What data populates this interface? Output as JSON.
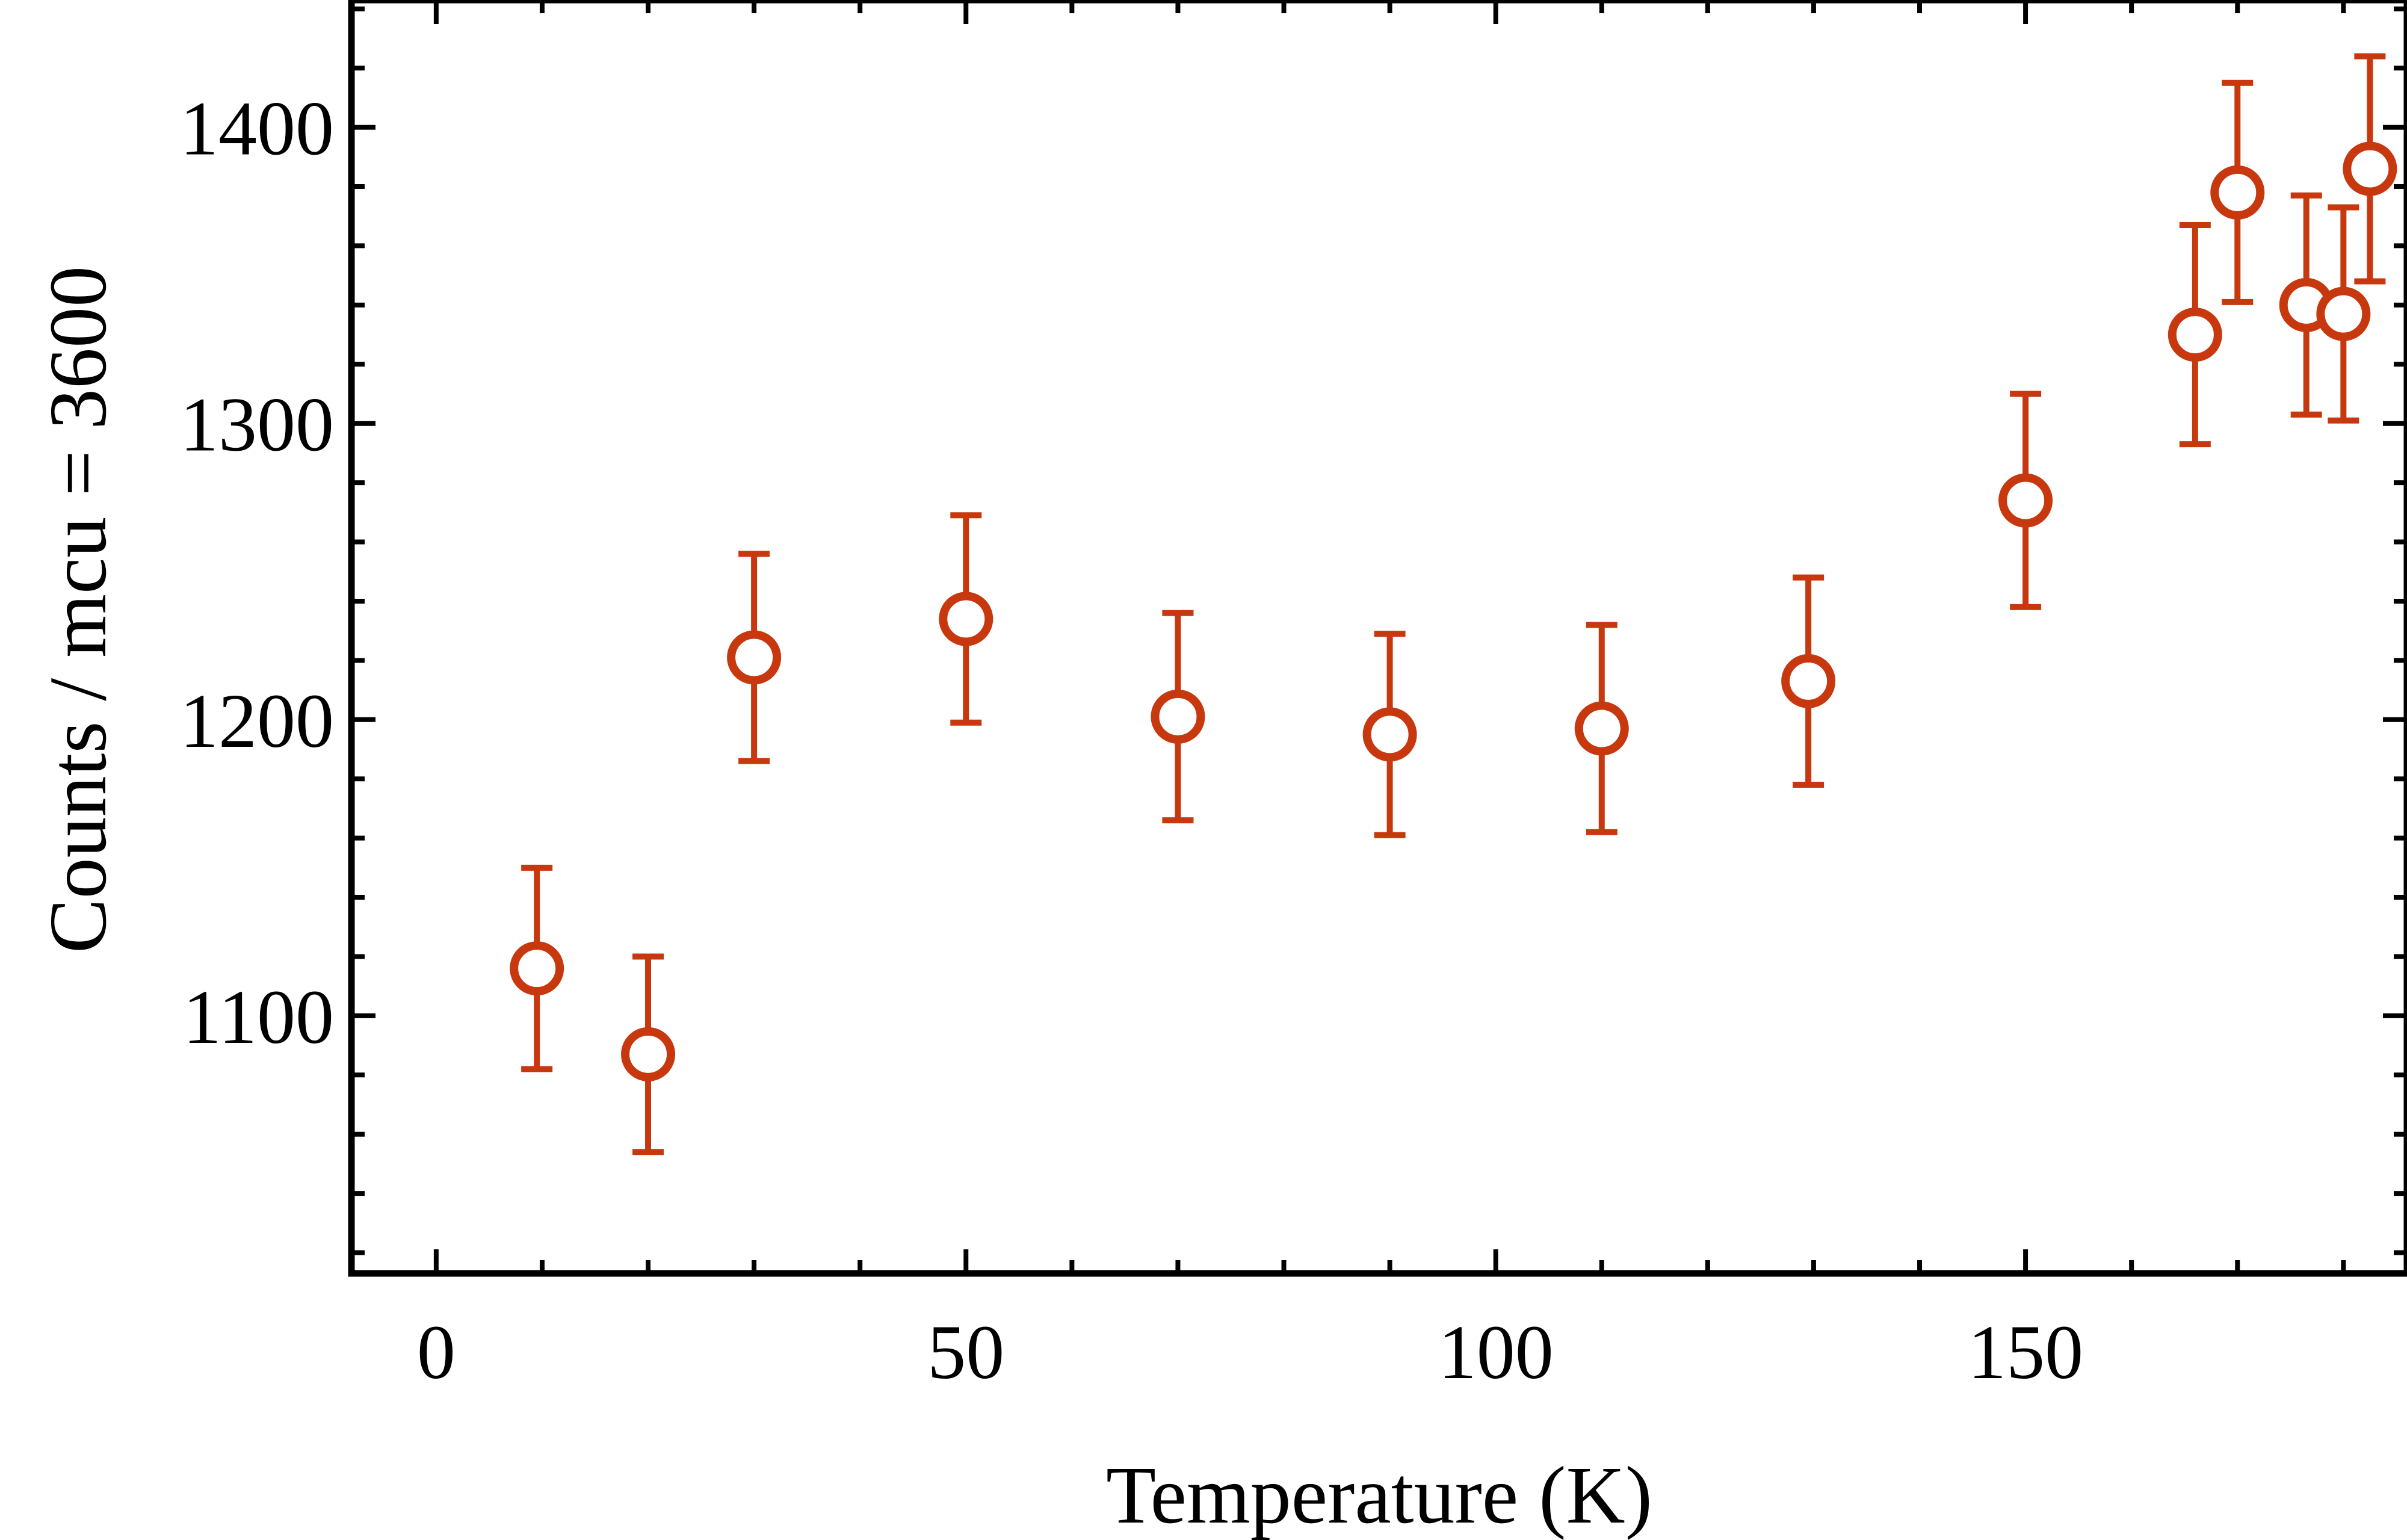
{
  "chart_data": {
    "type": "scatter",
    "title": "",
    "xlabel": "Temperature (K)",
    "ylabel": "Counts / mcu = 3600",
    "xlim": [
      -8,
      186
    ],
    "ylim": [
      1013,
      1443
    ],
    "x_ticks": [
      0,
      50,
      100,
      150
    ],
    "x_minor_step": 10,
    "y_ticks": [
      1100,
      1200,
      1300,
      1400
    ],
    "y_minor_step": 20,
    "grid": false,
    "legend": "none",
    "marker": "open-circle",
    "error_bars": true,
    "color": "#c8380e",
    "series": [
      {
        "points": [
          {
            "x": 9.5,
            "y": 1116,
            "err": 34
          },
          {
            "x": 20,
            "y": 1087,
            "err": 33
          },
          {
            "x": 30,
            "y": 1221,
            "err": 35
          },
          {
            "x": 50,
            "y": 1234,
            "err": 35
          },
          {
            "x": 70,
            "y": 1201,
            "err": 35
          },
          {
            "x": 90,
            "y": 1195,
            "err": 34
          },
          {
            "x": 110,
            "y": 1197,
            "err": 35
          },
          {
            "x": 129.5,
            "y": 1213,
            "err": 35
          },
          {
            "x": 150,
            "y": 1274,
            "err": 36
          },
          {
            "x": 166,
            "y": 1330,
            "err": 37
          },
          {
            "x": 170,
            "y": 1378,
            "err": 37
          },
          {
            "x": 176.5,
            "y": 1340,
            "err": 37
          },
          {
            "x": 180,
            "y": 1337,
            "err": 36
          },
          {
            "x": 182.5,
            "y": 1386,
            "err": 38
          }
        ]
      }
    ]
  }
}
